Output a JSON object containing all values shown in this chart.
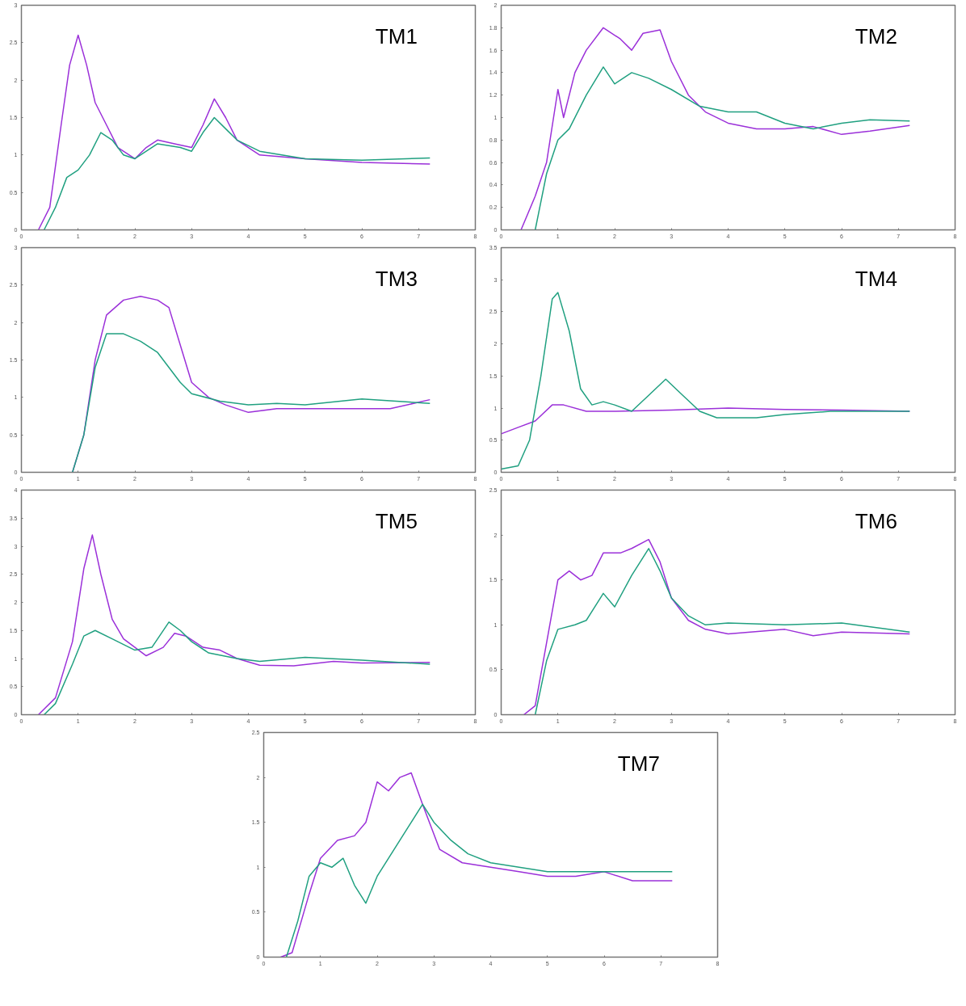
{
  "chart_data": [
    {
      "type": "line",
      "title": "TM1",
      "xlim": [
        0,
        8
      ],
      "ylim": [
        0,
        3
      ],
      "xticks": [
        0,
        1,
        2,
        3,
        4,
        5,
        6,
        7,
        8
      ],
      "yticks": [
        0,
        0.5,
        1,
        1.5,
        2,
        2.5,
        3
      ],
      "grid": false,
      "series": [
        {
          "color": "#9b30d9",
          "x": [
            0.3,
            0.5,
            0.7,
            0.85,
            1.0,
            1.15,
            1.3,
            1.5,
            1.7,
            2.0,
            2.2,
            2.4,
            2.7,
            3.0,
            3.2,
            3.4,
            3.6,
            3.8,
            4.2,
            5.0,
            6.0,
            7.2
          ],
          "values": [
            0,
            0.3,
            1.4,
            2.2,
            2.6,
            2.2,
            1.7,
            1.4,
            1.1,
            0.95,
            1.1,
            1.2,
            1.15,
            1.1,
            1.4,
            1.75,
            1.5,
            1.2,
            1.0,
            0.95,
            0.9,
            0.88
          ]
        },
        {
          "color": "#20a080",
          "x": [
            0.4,
            0.6,
            0.8,
            1.0,
            1.2,
            1.4,
            1.6,
            1.8,
            2.0,
            2.4,
            2.8,
            3.0,
            3.2,
            3.4,
            3.6,
            3.8,
            4.2,
            5.0,
            6.0,
            7.2
          ],
          "values": [
            0,
            0.3,
            0.7,
            0.8,
            1.0,
            1.3,
            1.2,
            1.0,
            0.95,
            1.15,
            1.1,
            1.05,
            1.3,
            1.5,
            1.35,
            1.2,
            1.05,
            0.95,
            0.93,
            0.96
          ]
        }
      ]
    },
    {
      "type": "line",
      "title": "TM2",
      "xlim": [
        0,
        8
      ],
      "ylim": [
        0,
        2
      ],
      "xticks": [
        0,
        1,
        2,
        3,
        4,
        5,
        6,
        7,
        8
      ],
      "yticks": [
        0,
        0.2,
        0.4,
        0.6,
        0.8,
        1,
        1.2,
        1.4,
        1.6,
        1.8,
        2
      ],
      "grid": false,
      "series": [
        {
          "color": "#9b30d9",
          "x": [
            0.35,
            0.6,
            0.8,
            1.0,
            1.1,
            1.3,
            1.5,
            1.8,
            2.1,
            2.3,
            2.5,
            2.8,
            3.0,
            3.3,
            3.6,
            4.0,
            4.5,
            5.0,
            5.5,
            6.0,
            6.5,
            7.2
          ],
          "values": [
            0,
            0.3,
            0.6,
            1.25,
            1.0,
            1.4,
            1.6,
            1.8,
            1.7,
            1.6,
            1.75,
            1.78,
            1.5,
            1.2,
            1.05,
            0.95,
            0.9,
            0.9,
            0.92,
            0.85,
            0.88,
            0.93
          ]
        },
        {
          "color": "#20a080",
          "x": [
            0.6,
            0.8,
            1.0,
            1.2,
            1.5,
            1.8,
            2.0,
            2.3,
            2.6,
            3.0,
            3.5,
            4.0,
            4.5,
            5.0,
            5.5,
            6.0,
            6.5,
            7.2
          ],
          "values": [
            0,
            0.5,
            0.8,
            0.9,
            1.2,
            1.45,
            1.3,
            1.4,
            1.35,
            1.25,
            1.1,
            1.05,
            1.05,
            0.95,
            0.9,
            0.95,
            0.98,
            0.97
          ]
        }
      ]
    },
    {
      "type": "line",
      "title": "TM3",
      "xlim": [
        0,
        8
      ],
      "ylim": [
        0,
        3
      ],
      "xticks": [
        0,
        1,
        2,
        3,
        4,
        5,
        6,
        7,
        8
      ],
      "yticks": [
        0,
        0.5,
        1,
        1.5,
        2,
        2.5,
        3
      ],
      "grid": false,
      "series": [
        {
          "color": "#9b30d9",
          "x": [
            0.9,
            1.1,
            1.3,
            1.5,
            1.8,
            2.1,
            2.4,
            2.6,
            2.8,
            3.0,
            3.3,
            3.6,
            4.0,
            4.5,
            5.0,
            6.0,
            6.5,
            7.2
          ],
          "values": [
            0,
            0.5,
            1.5,
            2.1,
            2.3,
            2.35,
            2.3,
            2.2,
            1.7,
            1.2,
            1.0,
            0.9,
            0.8,
            0.85,
            0.85,
            0.85,
            0.85,
            0.97
          ]
        },
        {
          "color": "#20a080",
          "x": [
            0.9,
            1.1,
            1.3,
            1.5,
            1.8,
            2.1,
            2.4,
            2.6,
            2.8,
            3.0,
            3.5,
            4.0,
            4.5,
            5.0,
            6.0,
            7.2
          ],
          "values": [
            0,
            0.5,
            1.4,
            1.85,
            1.85,
            1.75,
            1.6,
            1.4,
            1.2,
            1.05,
            0.95,
            0.9,
            0.92,
            0.9,
            0.98,
            0.92
          ]
        }
      ]
    },
    {
      "type": "line",
      "title": "TM4",
      "xlim": [
        0,
        8
      ],
      "ylim": [
        0,
        3.5
      ],
      "xticks": [
        0,
        1,
        2,
        3,
        4,
        5,
        6,
        7,
        8
      ],
      "yticks": [
        0,
        0.5,
        1,
        1.5,
        2,
        2.5,
        3,
        3.5
      ],
      "grid": false,
      "series": [
        {
          "color": "#9b30d9",
          "x": [
            0,
            0.3,
            0.6,
            0.9,
            1.1,
            1.5,
            2.0,
            3.0,
            4.0,
            5.0,
            6.0,
            7.2
          ],
          "values": [
            0.6,
            0.7,
            0.8,
            1.05,
            1.05,
            0.95,
            0.95,
            0.97,
            1.0,
            0.98,
            0.97,
            0.95
          ]
        },
        {
          "color": "#20a080",
          "x": [
            0,
            0.3,
            0.5,
            0.7,
            0.9,
            1.0,
            1.2,
            1.4,
            1.6,
            1.8,
            2.0,
            2.3,
            2.6,
            2.9,
            3.2,
            3.5,
            3.8,
            4.5,
            5.0,
            5.8,
            6.5,
            7.2
          ],
          "values": [
            0.05,
            0.1,
            0.5,
            1.5,
            2.7,
            2.8,
            2.2,
            1.3,
            1.05,
            1.1,
            1.05,
            0.95,
            1.2,
            1.45,
            1.2,
            0.95,
            0.85,
            0.85,
            0.9,
            0.95,
            0.95,
            0.95
          ]
        }
      ]
    },
    {
      "type": "line",
      "title": "TM5",
      "xlim": [
        0,
        8
      ],
      "ylim": [
        0,
        4
      ],
      "xticks": [
        0,
        1,
        2,
        3,
        4,
        5,
        6,
        7,
        8
      ],
      "yticks": [
        0,
        0.5,
        1,
        1.5,
        2,
        2.5,
        3,
        3.5,
        4
      ],
      "grid": false,
      "series": [
        {
          "color": "#9b30d9",
          "x": [
            0.3,
            0.6,
            0.9,
            1.1,
            1.25,
            1.4,
            1.6,
            1.8,
            2.0,
            2.2,
            2.5,
            2.7,
            2.9,
            3.2,
            3.5,
            3.8,
            4.2,
            4.8,
            5.5,
            6.0,
            7.2
          ],
          "values": [
            0,
            0.3,
            1.3,
            2.6,
            3.2,
            2.5,
            1.7,
            1.35,
            1.2,
            1.05,
            1.2,
            1.45,
            1.4,
            1.2,
            1.15,
            1.0,
            0.88,
            0.87,
            0.95,
            0.92,
            0.93
          ]
        },
        {
          "color": "#20a080",
          "x": [
            0.4,
            0.6,
            0.9,
            1.1,
            1.3,
            1.6,
            2.0,
            2.3,
            2.6,
            2.8,
            3.0,
            3.3,
            3.8,
            4.2,
            5.0,
            6.0,
            7.2
          ],
          "values": [
            0,
            0.2,
            0.9,
            1.4,
            1.5,
            1.35,
            1.15,
            1.2,
            1.65,
            1.5,
            1.3,
            1.1,
            1.0,
            0.95,
            1.02,
            0.97,
            0.9
          ]
        }
      ]
    },
    {
      "type": "line",
      "title": "TM6",
      "xlim": [
        0,
        8
      ],
      "ylim": [
        0,
        2.5
      ],
      "xticks": [
        0,
        1,
        2,
        3,
        4,
        5,
        6,
        7,
        8
      ],
      "yticks": [
        0,
        0.5,
        1,
        1.5,
        2,
        2.5
      ],
      "grid": false,
      "series": [
        {
          "color": "#9b30d9",
          "x": [
            0.4,
            0.6,
            0.8,
            1.0,
            1.2,
            1.4,
            1.6,
            1.8,
            2.1,
            2.3,
            2.6,
            2.8,
            3.0,
            3.3,
            3.6,
            4.0,
            5.0,
            5.5,
            6.0,
            7.2
          ],
          "values": [
            0,
            0.1,
            0.8,
            1.5,
            1.6,
            1.5,
            1.55,
            1.8,
            1.8,
            1.85,
            1.95,
            1.7,
            1.3,
            1.05,
            0.95,
            0.9,
            0.95,
            0.88,
            0.92,
            0.9
          ]
        },
        {
          "color": "#20a080",
          "x": [
            0.6,
            0.8,
            1.0,
            1.3,
            1.5,
            1.8,
            2.0,
            2.3,
            2.6,
            2.8,
            3.0,
            3.3,
            3.6,
            4.0,
            5.0,
            6.0,
            7.2
          ],
          "values": [
            0,
            0.6,
            0.95,
            1.0,
            1.05,
            1.35,
            1.2,
            1.55,
            1.85,
            1.6,
            1.3,
            1.1,
            1.0,
            1.02,
            1.0,
            1.02,
            0.92
          ]
        }
      ]
    },
    {
      "type": "line",
      "title": "TM7",
      "xlim": [
        0,
        8
      ],
      "ylim": [
        0,
        2.5
      ],
      "xticks": [
        0,
        1,
        2,
        3,
        4,
        5,
        6,
        7,
        8
      ],
      "yticks": [
        0,
        0.5,
        1,
        1.5,
        2,
        2.5
      ],
      "grid": false,
      "series": [
        {
          "color": "#9b30d9",
          "x": [
            0.3,
            0.5,
            0.8,
            1.0,
            1.3,
            1.6,
            1.8,
            2.0,
            2.2,
            2.4,
            2.6,
            2.8,
            3.1,
            3.5,
            4.0,
            4.5,
            5.0,
            5.5,
            6.0,
            6.5,
            7.2
          ],
          "values": [
            0,
            0.05,
            0.7,
            1.1,
            1.3,
            1.35,
            1.5,
            1.95,
            1.85,
            2.0,
            2.05,
            1.7,
            1.2,
            1.05,
            1.0,
            0.95,
            0.9,
            0.9,
            0.95,
            0.85,
            0.85
          ]
        },
        {
          "color": "#20a080",
          "x": [
            0.4,
            0.6,
            0.8,
            1.0,
            1.2,
            1.4,
            1.6,
            1.8,
            2.0,
            2.2,
            2.4,
            2.6,
            2.8,
            3.0,
            3.3,
            3.6,
            4.0,
            5.0,
            6.0,
            7.2
          ],
          "values": [
            0,
            0.4,
            0.9,
            1.05,
            1.0,
            1.1,
            0.8,
            0.6,
            0.9,
            1.1,
            1.3,
            1.5,
            1.7,
            1.5,
            1.3,
            1.15,
            1.05,
            0.95,
            0.95,
            0.95
          ]
        }
      ]
    }
  ]
}
